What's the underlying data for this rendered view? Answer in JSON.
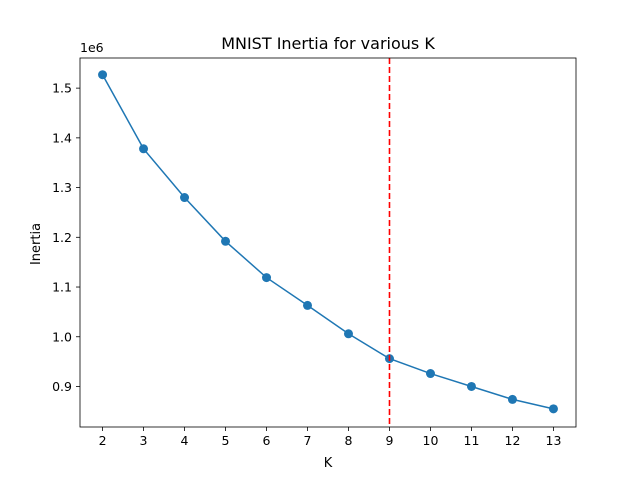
{
  "chart_data": {
    "type": "line",
    "title": "MNIST Inertia for various K",
    "xlabel": "K",
    "ylabel": "Inertia",
    "y_offset_label": "1e6",
    "x_ticks": [
      2,
      3,
      4,
      5,
      6,
      7,
      8,
      9,
      10,
      11,
      12,
      13
    ],
    "y_ticks": [
      0.9,
      1.0,
      1.1,
      1.2,
      1.3,
      1.4,
      1.5
    ],
    "y_tick_labels": [
      "0.9",
      "1.0",
      "1.1",
      "1.2",
      "1.3",
      "1.4",
      "1.5"
    ],
    "xlim": [
      1.45,
      13.55
    ],
    "ylim": [
      0.8185,
      1.5606
    ],
    "grid": false,
    "series": [
      {
        "color": "#1f77b4",
        "marker": "circle",
        "x": [
          2,
          3,
          4,
          5,
          6,
          7,
          8,
          9,
          10,
          11,
          12,
          13
        ],
        "y": [
          1.527,
          1.378,
          1.28,
          1.192,
          1.119,
          1.063,
          1.006,
          0.956,
          0.926,
          0.9,
          0.874,
          0.855
        ]
      }
    ],
    "reference_lines": [
      {
        "orientation": "vertical",
        "x": 9,
        "color": "#ff0000",
        "style": "dashed"
      }
    ]
  }
}
